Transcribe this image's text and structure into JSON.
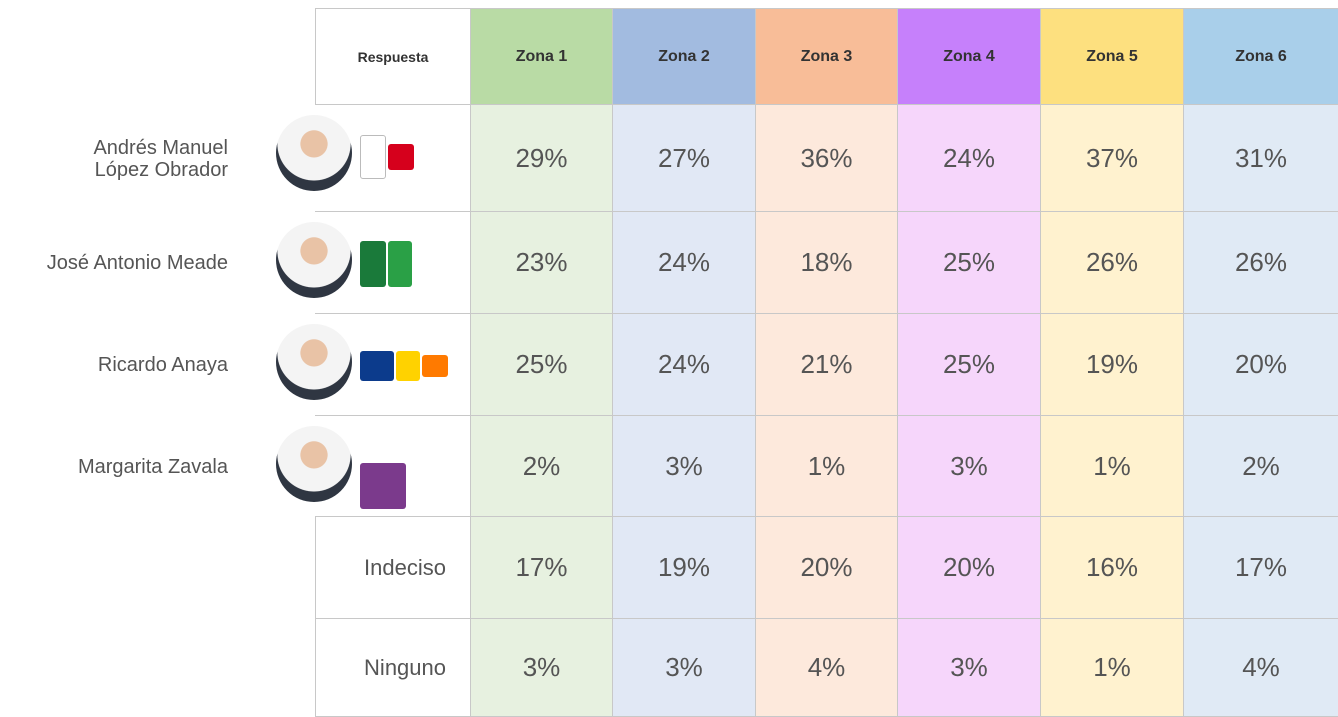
{
  "table": {
    "header": {
      "respuesta": "Respuesta",
      "zones": [
        "Zona 1",
        "Zona 2",
        "Zona 3",
        "Zona 4",
        "Zona 5",
        "Zona 6"
      ]
    },
    "rows": [
      {
        "candidate": [
          "Andrés Manuel",
          "López Obrador"
        ],
        "values": [
          "29%",
          "27%",
          "36%",
          "24%",
          "37%",
          "31%"
        ]
      },
      {
        "candidate": [
          "José Antonio Meade"
        ],
        "values": [
          "23%",
          "24%",
          "18%",
          "25%",
          "26%",
          "26%"
        ]
      },
      {
        "candidate": [
          "Ricardo Anaya"
        ],
        "values": [
          "25%",
          "24%",
          "21%",
          "25%",
          "19%",
          "20%"
        ]
      },
      {
        "candidate": [
          "Margarita Zavala"
        ],
        "values": [
          "2%",
          "3%",
          "1%",
          "3%",
          "1%",
          "2%"
        ]
      },
      {
        "answer": "Indeciso",
        "values": [
          "17%",
          "19%",
          "20%",
          "20%",
          "16%",
          "17%"
        ]
      },
      {
        "answer": "Ninguno",
        "values": [
          "3%",
          "3%",
          "4%",
          "3%",
          "1%",
          "4%"
        ]
      }
    ]
  }
}
